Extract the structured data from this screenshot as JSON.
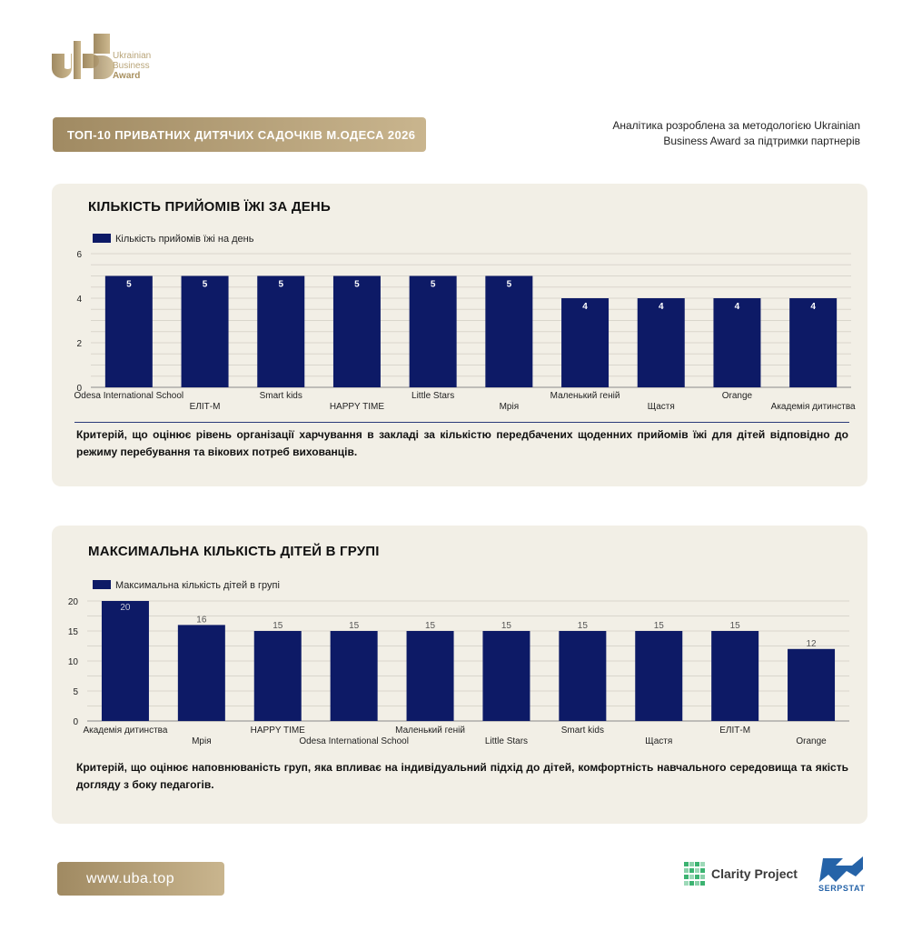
{
  "logo": {
    "icon": "uba-logo-icon",
    "line1": "Ukrainian",
    "line2": "Business",
    "line3": "Award"
  },
  "header": {
    "title": "ТОП-10 ПРИВАТНИХ ДИТЯЧИХ САДОЧКІВ М.ОДЕСА 2026",
    "note_line1": "Аналітика розроблена за методологією Ukrainian",
    "note_line2": "Business Award за підтримки партнерів"
  },
  "colors": {
    "gold_start": "#a08a62",
    "gold_end": "#c9b58e",
    "card_bg": "#f2efe6",
    "bar": "#0d1a66",
    "grid": "#d9d6cc"
  },
  "chart_data": [
    {
      "type": "bar",
      "title": "КІЛЬКІСТЬ ПРИЙОМІВ ЇЖІ ЗА ДЕНЬ",
      "legend": "Кількість прийомів їжі на день",
      "legend_position": "top-left",
      "categories": [
        "Odesa International School",
        "ЕЛІТ-М",
        "Smart kids",
        "HAPPY TIME",
        "Little Stars",
        "Мрія",
        "Маленький геній",
        "Щастя",
        "Orange",
        "Академія дитинства"
      ],
      "values": [
        5,
        5,
        5,
        5,
        5,
        5,
        4,
        4,
        4,
        4
      ],
      "ylim": [
        0,
        6
      ],
      "yticks": [
        0,
        2,
        4,
        6
      ],
      "grid": true,
      "criterion": "Критерій, що оцінює рівень організації харчування в закладі за кількістю передбачених щоденних прийомів їжі для дітей відповідно до режиму перебування та вікових потреб вихованців."
    },
    {
      "type": "bar",
      "title": "МАКСИМАЛЬНА КІЛЬКІСТЬ ДІТЕЙ В ГРУПІ",
      "legend": "Максимальна кількість дітей в групі",
      "legend_position": "top-left",
      "categories": [
        "Академія дитинства",
        "Мрія",
        "HAPPY TIME",
        "Odesa International School",
        "Маленький геній",
        "Little Stars",
        "Smart kids",
        "Щастя",
        "ЕЛІТ-М",
        "Orange"
      ],
      "values": [
        20,
        16,
        15,
        15,
        15,
        15,
        15,
        15,
        15,
        12
      ],
      "ylim": [
        0,
        20
      ],
      "yticks": [
        0,
        5,
        10,
        15,
        20
      ],
      "grid": true,
      "criterion": "Критерій, що оцінює наповнюваність груп, яка впливає на індивідуальний підхід до дітей, комфортність навчального середовища та якість догляду з боку педагогів."
    }
  ],
  "footer": {
    "url": "www.uba.top",
    "partner1_icon": "clarity-project-logo-icon",
    "partner1": "Clarity Project",
    "partner2_icon": "serpstat-logo-icon",
    "partner2": "SERPSTAT"
  }
}
